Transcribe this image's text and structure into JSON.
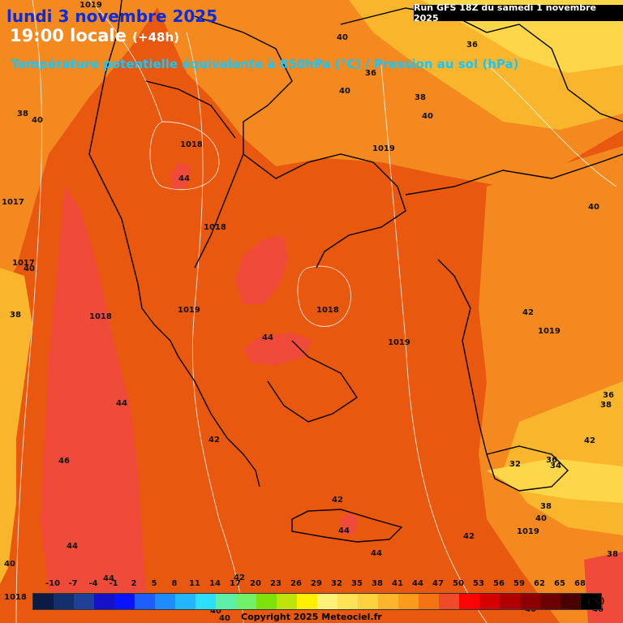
{
  "header": {
    "date": "lundi 3 novembre 2025",
    "time": "19:00 locale",
    "lead": "(+48h)",
    "title": "Température potentielle équivalente à 850hPa (°C) / Pression au sol (hPa)",
    "run": "Run GFS 18Z du samedi 1 novembre 2025"
  },
  "colors": {
    "bg_orange": "#e8580f",
    "orange_light": "#f3891f",
    "yellow_orange": "#f9b52c",
    "yellow": "#fdd64a",
    "red_zone": "#f04a3a",
    "red_core": "#e2353c",
    "legend": [
      "#0c1a44",
      "#13306a",
      "#1f3f98",
      "#1411c8",
      "#0a14ff",
      "#1e5dff",
      "#1e8bff",
      "#23b6ff",
      "#2cdfff",
      "#5ef0a8",
      "#71f06a",
      "#7fe10b",
      "#bde40b",
      "#fff000",
      "#fff17a",
      "#ffe255",
      "#fdd23f",
      "#fcb52c",
      "#fb9a1b",
      "#f47413",
      "#ef4a2a",
      "#fa0404",
      "#d50000",
      "#b00000",
      "#8c0000",
      "#6c0000",
      "#4a0000",
      "#000000"
    ]
  },
  "legend": {
    "ticks": [
      "-10",
      "-7",
      "-4",
      "-1",
      "2",
      "5",
      "8",
      "11",
      "14",
      "17",
      "20",
      "23",
      "26",
      "29",
      "32",
      "35",
      "38",
      "41",
      "44",
      "47",
      "50",
      "53",
      "56",
      "59",
      "62",
      "65",
      "68"
    ],
    "unit": "(°C)"
  },
  "theta_labels": [
    "40",
    "36",
    "40",
    "36",
    "38",
    "40",
    "38",
    "40",
    "44",
    "40",
    "38",
    "46",
    "44",
    "44",
    "42",
    "44",
    "42",
    "44",
    "42",
    "44",
    "40",
    "40",
    "42",
    "38",
    "36",
    "32",
    "36",
    "34",
    "38",
    "40",
    "42",
    "38",
    "46",
    "40",
    "40",
    "42",
    "44",
    "40"
  ],
  "pressure_labels": [
    "1018",
    "1019",
    "1017",
    "1017",
    "1018",
    "1018",
    "1019",
    "1018",
    "1019",
    "1019",
    "1019",
    "1019",
    "1018"
  ],
  "copyright": "Copyright 2025 Meteociel.fr"
}
